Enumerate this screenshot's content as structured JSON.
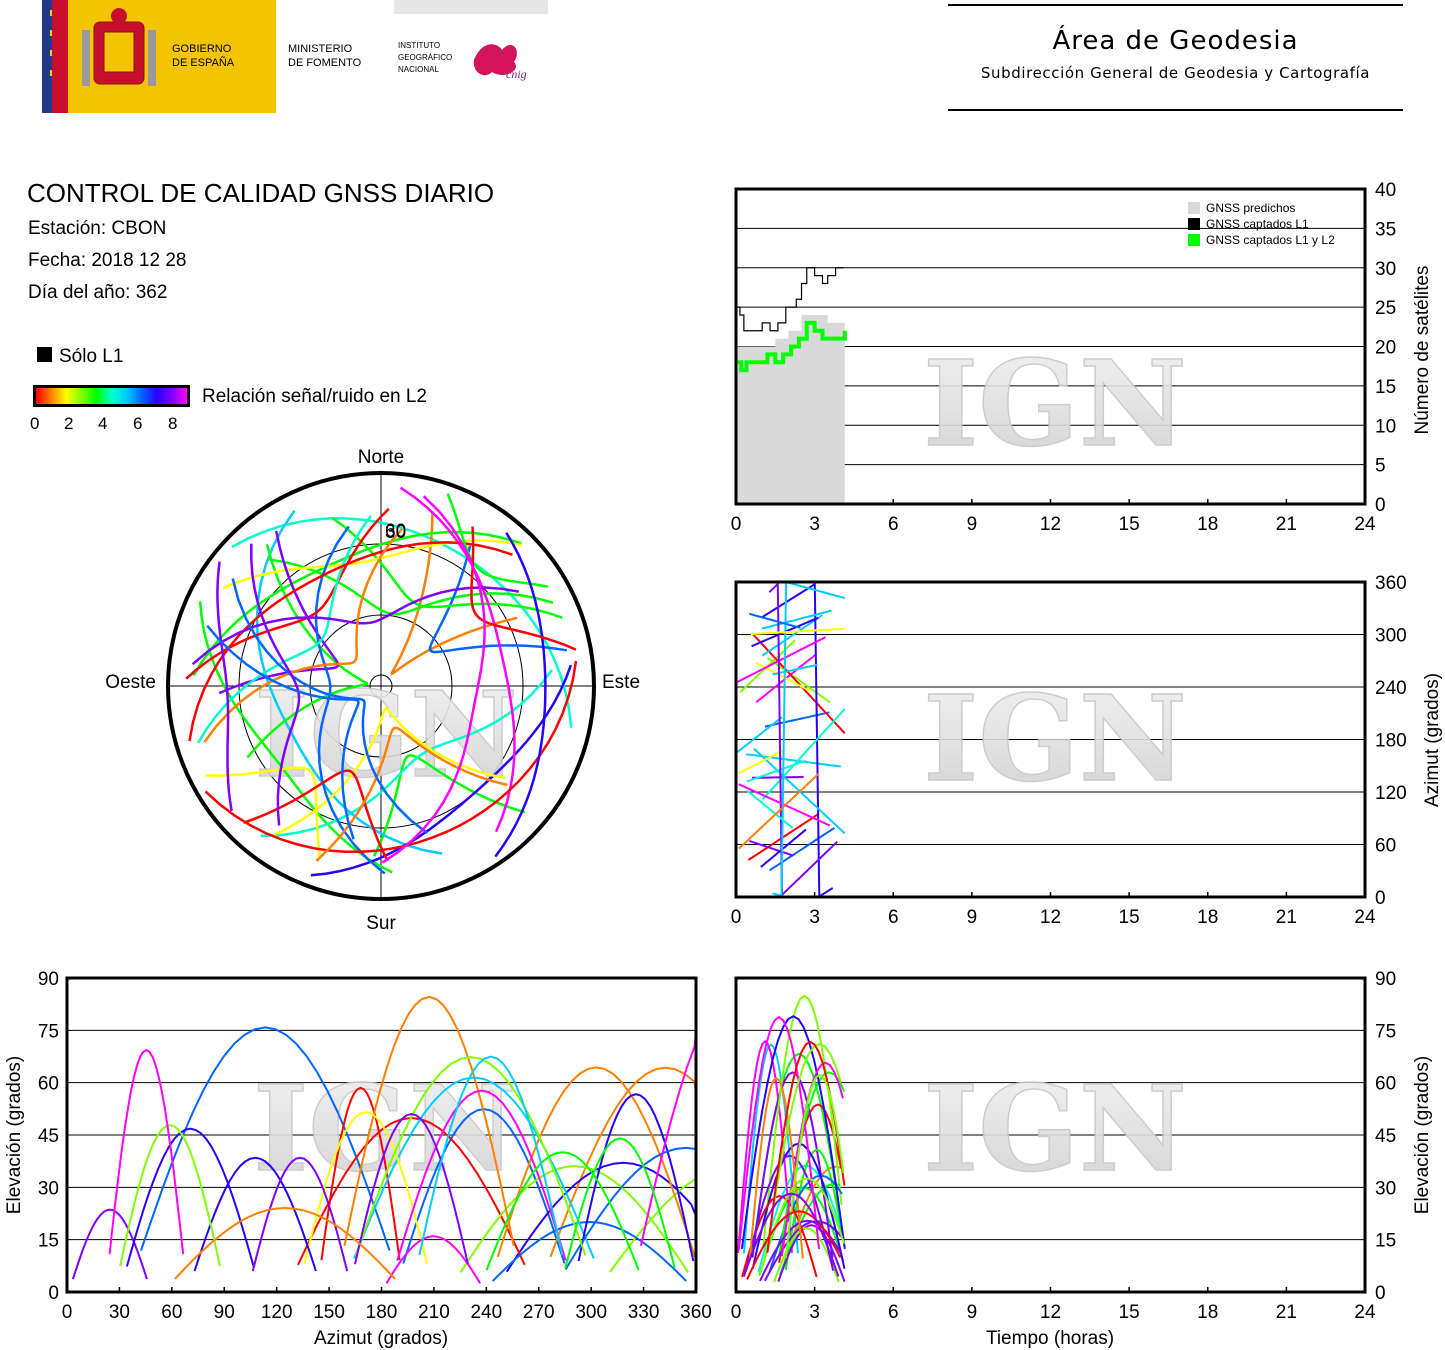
{
  "header": {
    "gobierno": [
      "GOBIERNO",
      "DE ESPAÑA"
    ],
    "ministerio": [
      "MINISTERIO",
      "DE FOMENTO"
    ],
    "instituto": [
      "INSTITUTO",
      "GEOGRÁFICO",
      "NACIONAL"
    ],
    "cnig": "cnig",
    "area_title": "Área de Geodesia",
    "area_subtitle": "Subdirección General de Geodesia y Cartografía"
  },
  "report": {
    "title": "CONTROL DE CALIDAD GNSS DIARIO",
    "station": "Estación: CBON",
    "date": "Fecha: 2018 12 28",
    "doy": "Día del año: 362"
  },
  "legend": {
    "l1_only": "Sólo L1",
    "snr_label": "Relación señal/ruido en L2",
    "snr_ticks": [
      "0",
      "2",
      "4",
      "6",
      "8"
    ]
  },
  "watermark": "IGN",
  "colors": {
    "predicted": "#d9d9d9",
    "captured_l1": "#000000",
    "captured_l1_l2": "#00ff00",
    "snr_scale": [
      "#ff0000",
      "#ff7f00",
      "#ffff00",
      "#7fff00",
      "#00ff00",
      "#00ffcc",
      "#00ccff",
      "#0066ff",
      "#2a00ff",
      "#8000ff",
      "#ff00ff"
    ]
  },
  "chart_data": [
    {
      "id": "satellite-count",
      "type": "area",
      "title": "",
      "xlabel": "",
      "ylabel": "Número de satélites",
      "xlim": [
        0,
        24
      ],
      "ylim": [
        0,
        40
      ],
      "xticks": [
        "0",
        "3",
        "6",
        "9",
        "12",
        "15",
        "18",
        "21",
        "24"
      ],
      "yticks": [
        "0",
        "5",
        "10",
        "15",
        "20",
        "25",
        "30",
        "35",
        "40"
      ],
      "grid": "horizontal",
      "legend_position": "top-right",
      "series": [
        {
          "name": "GNSS predichos",
          "x": [
            0,
            0.5,
            1,
            1.5,
            2,
            2.5,
            3,
            3.5,
            4.15
          ],
          "values": [
            20,
            20,
            20,
            21,
            22,
            24,
            24,
            23,
            23
          ]
        },
        {
          "name": "GNSS captados L1",
          "x": [
            0,
            0.15,
            0.3,
            0.6,
            1,
            1.3,
            1.6,
            1.9,
            2.3,
            2.5,
            2.7,
            3,
            3.3,
            3.5,
            3.8,
            4.1
          ],
          "values": [
            25,
            24,
            22,
            22,
            23,
            22,
            23,
            25,
            26,
            28,
            30,
            29,
            28,
            29,
            30,
            30
          ]
        },
        {
          "name": "GNSS captados L1 y L2",
          "x": [
            0,
            0.2,
            0.4,
            0.8,
            1.2,
            1.5,
            1.8,
            2.1,
            2.4,
            2.7,
            3,
            3.3,
            3.6,
            3.9,
            4.15
          ],
          "values": [
            18,
            17,
            18,
            18,
            19,
            18,
            19,
            20,
            21,
            23,
            22,
            21,
            21,
            21,
            22
          ]
        }
      ]
    },
    {
      "id": "sky-plot",
      "type": "scatter",
      "title": "",
      "labels": {
        "north": "Norte",
        "south": "Sur",
        "east": "Este",
        "west": "Oeste"
      },
      "elevation_rings": [
        "30",
        "60"
      ],
      "note": "Polar sky plot; tracks colored by L2 SNR"
    },
    {
      "id": "azimuth-time",
      "type": "scatter",
      "xlabel": "",
      "ylabel": "Azimut (grados)",
      "xlim": [
        0,
        24
      ],
      "ylim": [
        0,
        360
      ],
      "xticks": [
        "0",
        "3",
        "6",
        "9",
        "12",
        "15",
        "18",
        "21",
        "24"
      ],
      "yticks": [
        "0",
        "60",
        "120",
        "180",
        "240",
        "300",
        "360"
      ],
      "grid": "horizontal"
    },
    {
      "id": "elevation-azimuth",
      "type": "scatter",
      "xlabel": "Azimut (grados)",
      "ylabel": "Elevación (grados)",
      "xlim": [
        0,
        360
      ],
      "ylim": [
        0,
        90
      ],
      "xticks": [
        "0",
        "30",
        "60",
        "90",
        "120",
        "150",
        "180",
        "210",
        "240",
        "270",
        "300",
        "330",
        "360"
      ],
      "yticks": [
        "0",
        "15",
        "30",
        "45",
        "60",
        "75",
        "90"
      ],
      "grid": "horizontal"
    },
    {
      "id": "elevation-time",
      "type": "scatter",
      "xlabel": "Tiempo (horas)",
      "ylabel": "Elevación (grados)",
      "xlim": [
        0,
        24
      ],
      "ylim": [
        0,
        90
      ],
      "xticks": [
        "0",
        "3",
        "6",
        "9",
        "12",
        "15",
        "18",
        "21",
        "24"
      ],
      "yticks": [
        "0",
        "15",
        "30",
        "45",
        "60",
        "75",
        "90"
      ],
      "grid": "horizontal"
    }
  ]
}
